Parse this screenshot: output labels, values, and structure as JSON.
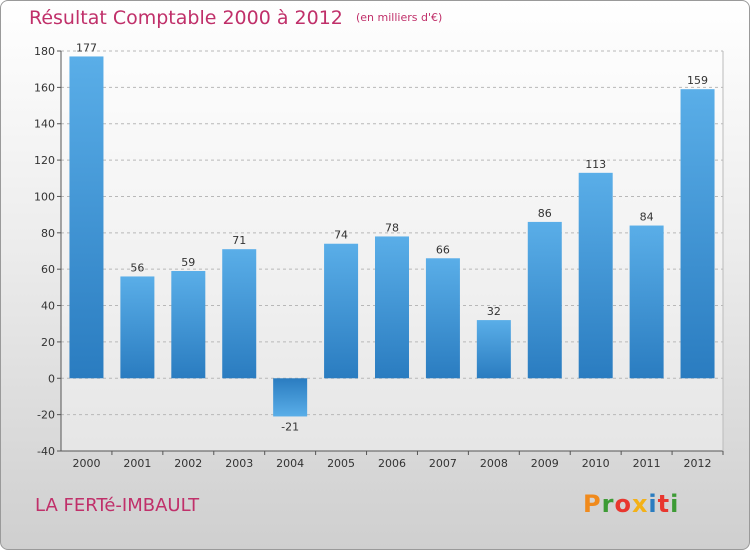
{
  "title": "Résultat Comptable 2000 à 2012",
  "unit": "(en milliers d'€)",
  "commune": "LA FERTé-IMBAULT",
  "logo": "Proxiti",
  "colors": {
    "title": "#c0306a",
    "bar_light": "#5aaee8",
    "bar_dark": "#2a7cc0"
  },
  "chart_data": {
    "type": "bar",
    "categories": [
      "2000",
      "2001",
      "2002",
      "2003",
      "2004",
      "2005",
      "2006",
      "2007",
      "2008",
      "2009",
      "2010",
      "2011",
      "2012"
    ],
    "values": [
      177,
      56,
      59,
      71,
      -21,
      74,
      78,
      66,
      32,
      86,
      113,
      84,
      159
    ],
    "title": "Résultat Comptable 2000 à 2012",
    "xlabel": "",
    "ylabel": "",
    "ylim": [
      -40,
      180
    ],
    "yticks": [
      -40,
      -20,
      0,
      20,
      40,
      60,
      80,
      100,
      120,
      140,
      160,
      180
    ],
    "grid": "horizontal dashed",
    "legend": "none"
  }
}
